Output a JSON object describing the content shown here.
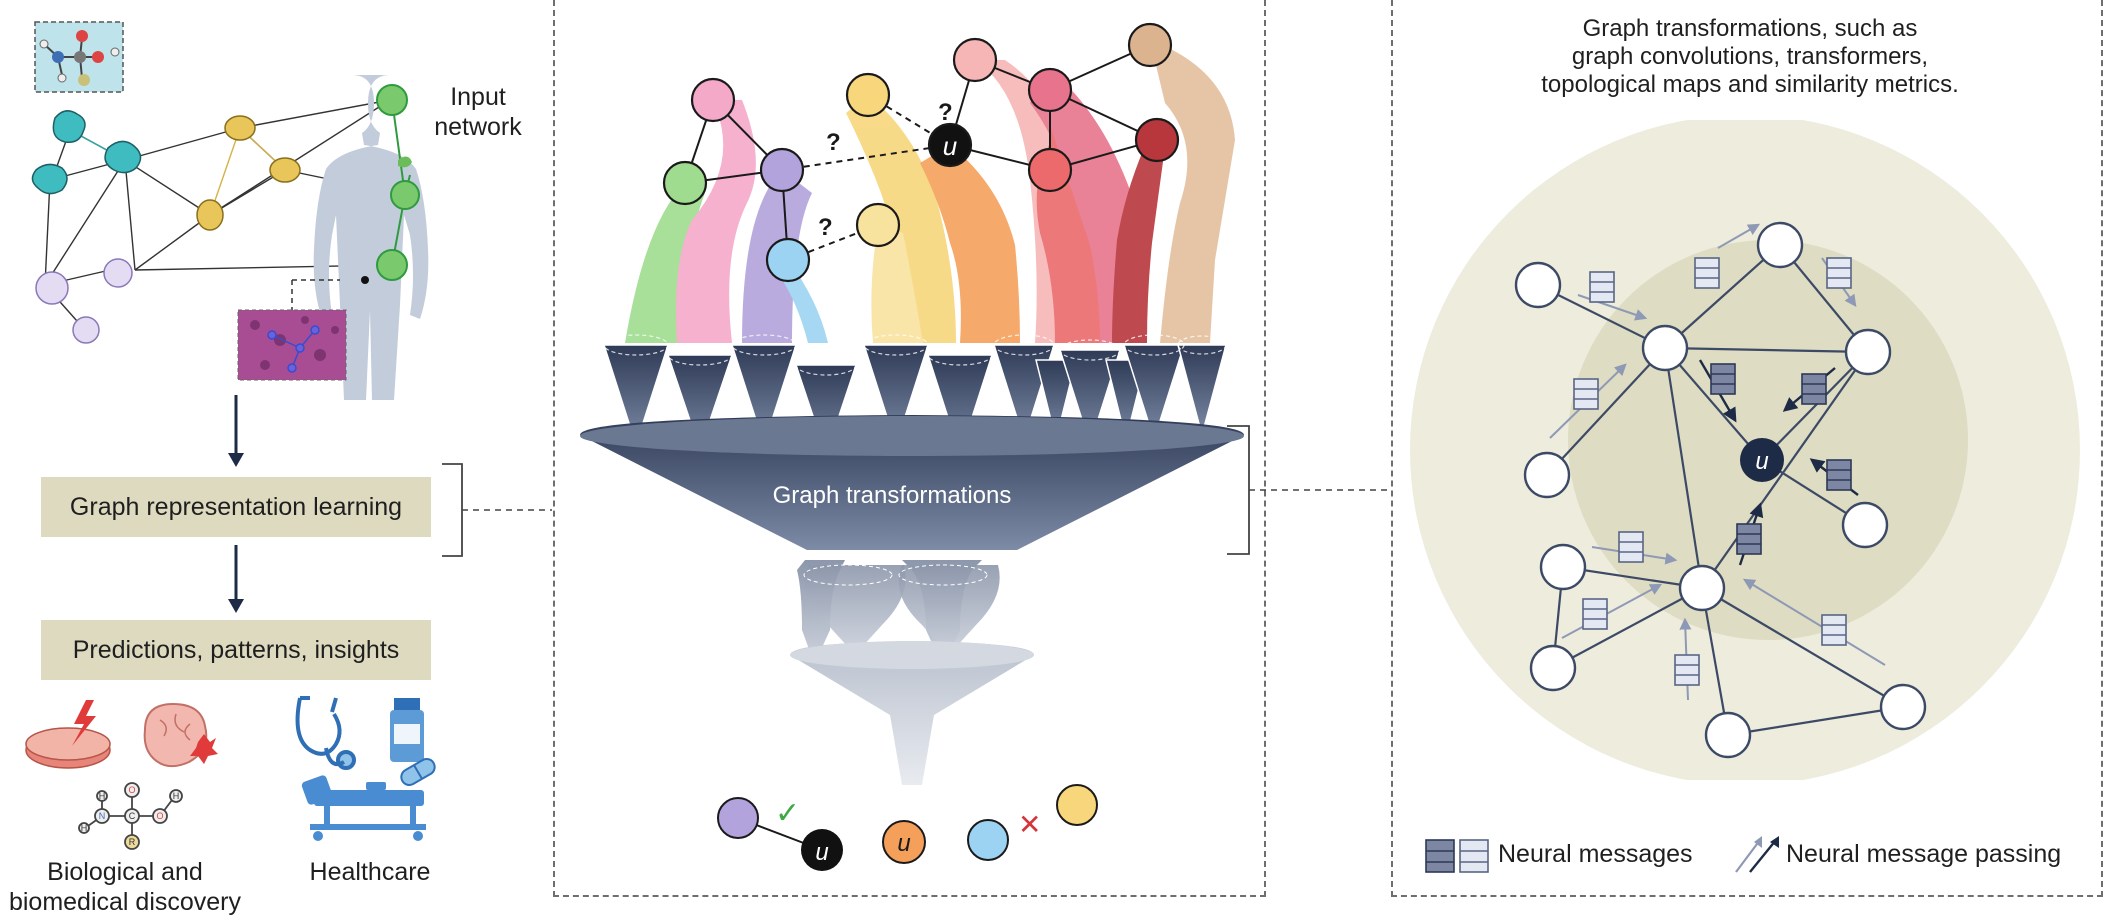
{
  "left": {
    "input_network_label": "Input\nnetwork",
    "box1_label": "Graph representation learning",
    "box2_label": "Predictions, patterns, insights",
    "bio_label": "Biological and\nbiomedical discovery",
    "health_label": "Healthcare",
    "molecule_atoms": {
      "h": "H",
      "n": "N",
      "c": "C",
      "o": "O",
      "r": "R"
    }
  },
  "middle": {
    "funnel_label": "Graph transformations",
    "node_u": "u",
    "question_mark": "?",
    "outcomes": {
      "check": "✓",
      "cross": "✕"
    }
  },
  "right": {
    "caption": "Graph transformations, such as\ngraph convolutions, transformers,\ntopological maps and similarity metrics.",
    "node_u": "u",
    "legend_messages": "Neural messages",
    "legend_passing": "Neural message passing"
  },
  "colors": {
    "navy": "#1e2b46",
    "funnel_dark": "#3f4c68",
    "box_bg": "#dedac0",
    "outer_circle": "#edecdd",
    "inner_circle": "#dedcc2",
    "green": "#8fd48a",
    "pink": "#f0a4c4",
    "purple": "#a89bd6",
    "blue": "#8cc8ee",
    "yellow": "#f6d77e",
    "orange": "#f4a052",
    "salmon": "#f6b3b3",
    "red": "#e05a66",
    "dark_red": "#b5343b",
    "tan": "#dcb38f"
  },
  "icons": [
    "molecule-icon",
    "protein-icon",
    "human-body-icon",
    "tissue-image-icon",
    "petri-dish-icon",
    "brain-icon",
    "stethoscope-icon",
    "medicine-bottle-icon",
    "hospital-bed-icon",
    "check-icon",
    "cross-icon"
  ]
}
